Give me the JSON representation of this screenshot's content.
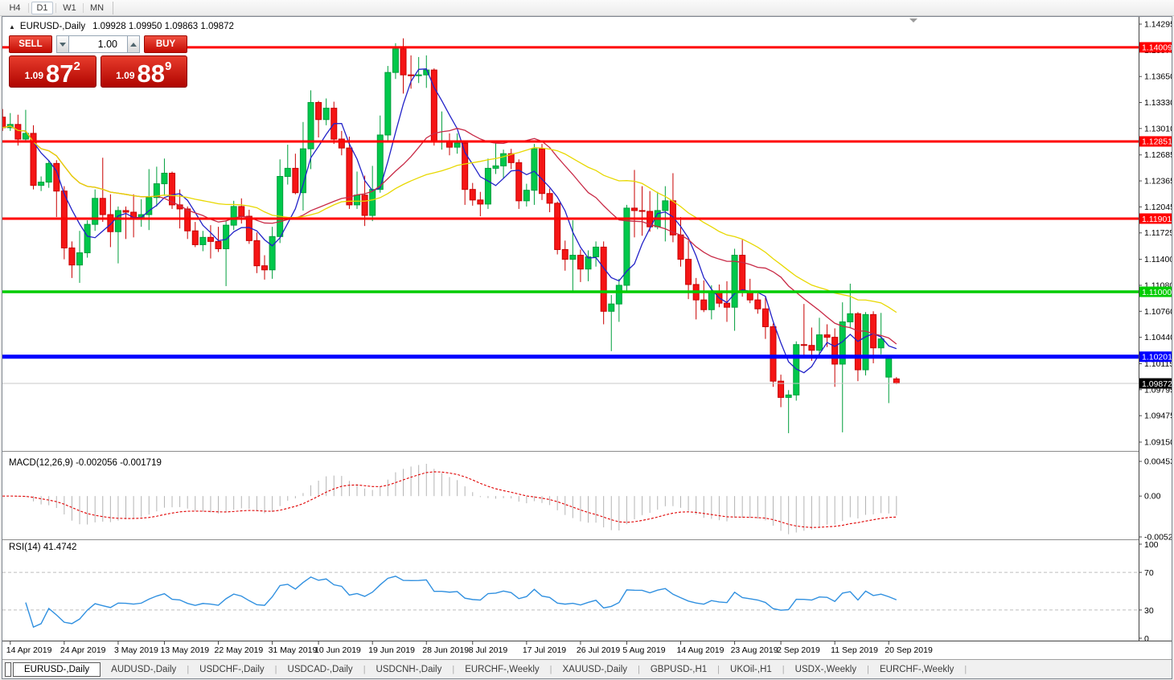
{
  "toolbar": {
    "timeframes": [
      "H4",
      "D1",
      "W1",
      "MN"
    ],
    "active_timeframe": "D1"
  },
  "chart_header": {
    "collapse_icon": "▲",
    "symbol": "EURUSD-,Daily",
    "ohlc": "1.09928 1.09950 1.09863 1.09872"
  },
  "trade_panel": {
    "sell_label": "SELL",
    "buy_label": "BUY",
    "volume": "1.00",
    "sell_price": {
      "prefix": "1.09",
      "big": "87",
      "sup": "2"
    },
    "buy_price": {
      "prefix": "1.09",
      "big": "88",
      "sup": "9"
    },
    "accent_red": "#c40b02"
  },
  "indicators": {
    "macd_label": "MACD(12,26,9) -0.002056 -0.001719",
    "rsi_label": "RSI(14) 41.4742"
  },
  "chart_data": {
    "type": "candlestick",
    "symbol": "EURUSD-",
    "timeframe": "Daily",
    "ylim": [
      1.0904,
      1.1438
    ],
    "grid": false,
    "candle_colors": {
      "up": "#00C84B",
      "up_stroke": "#009E3C",
      "down": "#F51515",
      "down_stroke": "#C80000"
    },
    "price_ticks": [
      "1.14295",
      "1.13975",
      "1.13650",
      "1.13330",
      "1.13010",
      "1.12685",
      "1.12365",
      "1.12045",
      "1.11725",
      "1.11400",
      "1.11080",
      "1.10760",
      "1.10440",
      "1.10115",
      "1.09795",
      "1.09475",
      "1.09150"
    ],
    "x_labels": [
      {
        "i": 1,
        "label": "14 Apr 2019"
      },
      {
        "i": 8,
        "label": "24 Apr 2019"
      },
      {
        "i": 15,
        "label": "3 May 2019"
      },
      {
        "i": 21,
        "label": "13 May 2019"
      },
      {
        "i": 28,
        "label": "22 May 2019"
      },
      {
        "i": 35,
        "label": "31 May 2019"
      },
      {
        "i": 41,
        "label": "10 Jun 2019"
      },
      {
        "i": 48,
        "label": "19 Jun 2019"
      },
      {
        "i": 55,
        "label": "28 Jun 2019"
      },
      {
        "i": 61,
        "label": "8 Jul 2019"
      },
      {
        "i": 68,
        "label": "17 Jul 2019"
      },
      {
        "i": 75,
        "label": "26 Jul 2019"
      },
      {
        "i": 81,
        "label": "5 Aug 2019"
      },
      {
        "i": 88,
        "label": "14 Aug 2019"
      },
      {
        "i": 95,
        "label": "23 Aug 2019"
      },
      {
        "i": 101,
        "label": "2 Sep 2019"
      },
      {
        "i": 108,
        "label": "11 Sep 2019"
      },
      {
        "i": 115,
        "label": "20 Sep 2019"
      }
    ],
    "candles": [
      [
        1.1315,
        1.1325,
        1.1298,
        1.1302
      ],
      [
        1.1302,
        1.132,
        1.1298,
        1.1306
      ],
      [
        1.1306,
        1.1318,
        1.128,
        1.1288
      ],
      [
        1.1288,
        1.1324,
        1.1286,
        1.1295
      ],
      [
        1.1295,
        1.1305,
        1.1226,
        1.1231
      ],
      [
        1.1231,
        1.1242,
        1.1224,
        1.1235
      ],
      [
        1.1235,
        1.1262,
        1.1228,
        1.1258
      ],
      [
        1.1258,
        1.1262,
        1.1192,
        1.1224
      ],
      [
        1.1224,
        1.123,
        1.114,
        1.1154
      ],
      [
        1.1154,
        1.1162,
        1.1117,
        1.1133
      ],
      [
        1.1133,
        1.1175,
        1.1111,
        1.1148
      ],
      [
        1.1148,
        1.1188,
        1.1142,
        1.1183
      ],
      [
        1.1183,
        1.1226,
        1.1175,
        1.1215
      ],
      [
        1.1215,
        1.1265,
        1.1186,
        1.1195
      ],
      [
        1.1195,
        1.122,
        1.1155,
        1.1174
      ],
      [
        1.1174,
        1.1205,
        1.1135,
        1.12
      ],
      [
        1.12,
        1.1205,
        1.1165,
        1.1198
      ],
      [
        1.1198,
        1.122,
        1.1167,
        1.119
      ],
      [
        1.119,
        1.1214,
        1.118,
        1.1195
      ],
      [
        1.1195,
        1.1251,
        1.1176,
        1.1216
      ],
      [
        1.1216,
        1.1254,
        1.1205,
        1.1233
      ],
      [
        1.1233,
        1.1264,
        1.1218,
        1.1246
      ],
      [
        1.1246,
        1.1248,
        1.1202,
        1.1207
      ],
      [
        1.1207,
        1.1226,
        1.1178,
        1.1202
      ],
      [
        1.1202,
        1.1205,
        1.1165,
        1.1175
      ],
      [
        1.1175,
        1.1186,
        1.1155,
        1.1158
      ],
      [
        1.1158,
        1.1175,
        1.115,
        1.1167
      ],
      [
        1.1167,
        1.1182,
        1.1141,
        1.1162
      ],
      [
        1.1162,
        1.118,
        1.1149,
        1.1153
      ],
      [
        1.1153,
        1.1188,
        1.1107,
        1.1182
      ],
      [
        1.1182,
        1.1212,
        1.1176,
        1.1205
      ],
      [
        1.1205,
        1.1215,
        1.1184,
        1.1193
      ],
      [
        1.1193,
        1.1201,
        1.1159,
        1.1163
      ],
      [
        1.1163,
        1.1173,
        1.1123,
        1.1132
      ],
      [
        1.1132,
        1.1145,
        1.1115,
        1.1127
      ],
      [
        1.1127,
        1.118,
        1.1116,
        1.1168
      ],
      [
        1.1168,
        1.1263,
        1.116,
        1.1242
      ],
      [
        1.1242,
        1.1281,
        1.1232,
        1.1252
      ],
      [
        1.1252,
        1.127,
        1.122,
        1.1222
      ],
      [
        1.1222,
        1.1309,
        1.12,
        1.1276
      ],
      [
        1.1276,
        1.1348,
        1.1251,
        1.1333
      ],
      [
        1.1333,
        1.1335,
        1.129,
        1.1312
      ],
      [
        1.1312,
        1.1338,
        1.1305,
        1.1326
      ],
      [
        1.1326,
        1.1334,
        1.1282,
        1.1288
      ],
      [
        1.1288,
        1.1298,
        1.1268,
        1.1277
      ],
      [
        1.1277,
        1.1291,
        1.1202,
        1.1207
      ],
      [
        1.1207,
        1.1248,
        1.1202,
        1.1219
      ],
      [
        1.1219,
        1.1243,
        1.1181,
        1.1194
      ],
      [
        1.1194,
        1.1255,
        1.1187,
        1.1226
      ],
      [
        1.1226,
        1.1317,
        1.1222,
        1.1293
      ],
      [
        1.1293,
        1.1378,
        1.1285,
        1.137
      ],
      [
        1.137,
        1.1406,
        1.1362,
        1.1399
      ],
      [
        1.1399,
        1.1412,
        1.1344,
        1.1367
      ],
      [
        1.1367,
        1.1391,
        1.135,
        1.1366
      ],
      [
        1.1366,
        1.1389,
        1.1357,
        1.1367
      ],
      [
        1.1367,
        1.1391,
        1.1351,
        1.1373
      ],
      [
        1.1373,
        1.1375,
        1.128,
        1.1285
      ],
      [
        1.1285,
        1.1322,
        1.1275,
        1.1285
      ],
      [
        1.1285,
        1.1295,
        1.1268,
        1.1278
      ],
      [
        1.1278,
        1.1295,
        1.127,
        1.1283
      ],
      [
        1.1283,
        1.1286,
        1.1207,
        1.1226
      ],
      [
        1.1226,
        1.1234,
        1.1206,
        1.1213
      ],
      [
        1.1213,
        1.1223,
        1.1193,
        1.1208
      ],
      [
        1.1208,
        1.1264,
        1.1202,
        1.1252
      ],
      [
        1.1252,
        1.1286,
        1.1245,
        1.1255
      ],
      [
        1.1255,
        1.1275,
        1.1239,
        1.127
      ],
      [
        1.127,
        1.1276,
        1.1251,
        1.1259
      ],
      [
        1.1259,
        1.1263,
        1.1202,
        1.1212
      ],
      [
        1.1212,
        1.1233,
        1.1205,
        1.1225
      ],
      [
        1.1225,
        1.1282,
        1.1207,
        1.1276
      ],
      [
        1.1276,
        1.1282,
        1.1213,
        1.1221
      ],
      [
        1.1221,
        1.1227,
        1.1198,
        1.1209
      ],
      [
        1.1209,
        1.1211,
        1.1146,
        1.1152
      ],
      [
        1.1152,
        1.1163,
        1.1126,
        1.114
      ],
      [
        1.114,
        1.1188,
        1.1101,
        1.1145
      ],
      [
        1.1145,
        1.1152,
        1.1112,
        1.1128
      ],
      [
        1.1128,
        1.1151,
        1.1113,
        1.1143
      ],
      [
        1.1143,
        1.1162,
        1.1131,
        1.1155
      ],
      [
        1.1155,
        1.1162,
        1.106,
        1.1076
      ],
      [
        1.1076,
        1.1096,
        1.1027,
        1.1085
      ],
      [
        1.1085,
        1.1116,
        1.1063,
        1.1108
      ],
      [
        1.1108,
        1.1207,
        1.1101,
        1.1203
      ],
      [
        1.1203,
        1.125,
        1.1167,
        1.12
      ],
      [
        1.12,
        1.123,
        1.1169,
        1.1199
      ],
      [
        1.1199,
        1.1224,
        1.1174,
        1.118
      ],
      [
        1.118,
        1.1223,
        1.1177,
        1.12
      ],
      [
        1.12,
        1.123,
        1.1162,
        1.1212
      ],
      [
        1.1212,
        1.1246,
        1.1161,
        1.117
      ],
      [
        1.117,
        1.1192,
        1.1131,
        1.114
      ],
      [
        1.114,
        1.1163,
        1.1091,
        1.1109
      ],
      [
        1.1109,
        1.1117,
        1.1066,
        1.109
      ],
      [
        1.109,
        1.1114,
        1.1075,
        1.1078
      ],
      [
        1.1078,
        1.1108,
        1.1066,
        1.1099
      ],
      [
        1.1099,
        1.1109,
        1.1081,
        1.1086
      ],
      [
        1.1086,
        1.1113,
        1.1063,
        1.1081
      ],
      [
        1.1081,
        1.1153,
        1.1052,
        1.1145
      ],
      [
        1.1145,
        1.1164,
        1.1094,
        1.1101
      ],
      [
        1.1101,
        1.1116,
        1.1086,
        1.109
      ],
      [
        1.109,
        1.1098,
        1.1073,
        1.1079
      ],
      [
        1.1079,
        1.1094,
        1.1042,
        1.1057
      ],
      [
        1.1057,
        1.1061,
        1.0983,
        1.099
      ],
      [
        1.099,
        1.0998,
        1.0958,
        1.097
      ],
      [
        1.097,
        1.0979,
        1.0926,
        1.0973
      ],
      [
        1.0973,
        1.1039,
        1.0966,
        1.1035
      ],
      [
        1.1035,
        1.1085,
        1.1022,
        1.1034
      ],
      [
        1.1034,
        1.1056,
        1.1015,
        1.1028
      ],
      [
        1.1028,
        1.1068,
        1.1022,
        1.1047
      ],
      [
        1.1047,
        1.106,
        1.1032,
        1.1044
      ],
      [
        1.1044,
        1.1055,
        1.0983,
        1.1011
      ],
      [
        1.1011,
        1.1087,
        1.0927,
        1.1063
      ],
      [
        1.1063,
        1.111,
        1.1055,
        1.1073
      ],
      [
        1.1073,
        1.1075,
        1.099,
        1.1004
      ],
      [
        1.1004,
        1.1075,
        1.0997,
        1.1072
      ],
      [
        1.1072,
        1.1076,
        1.1012,
        1.1031
      ],
      [
        1.1031,
        1.1074,
        1.1023,
        1.1042
      ],
      [
        1.0995,
        1.1022,
        1.0963,
        1.1018
      ],
      [
        1.09928,
        1.0995,
        1.09863,
        1.09872
      ]
    ],
    "ma_lines": [
      {
        "period": 5,
        "color": "#2222C8"
      },
      {
        "period": 21,
        "color": "#C82A46"
      },
      {
        "period": 34,
        "color": "#E8D800"
      }
    ],
    "levels": [
      {
        "price": 1.14009,
        "label": "1.14009",
        "color": "#FF0000",
        "width": 3
      },
      {
        "price": 1.12851,
        "label": "1.12851",
        "color": "#FF0000",
        "width": 3
      },
      {
        "price": 1.11901,
        "label": "1.11901",
        "color": "#FF0000",
        "width": 3
      },
      {
        "price": 1.11,
        "label": "1.11000",
        "color": "#00CC00",
        "width": 3.5
      },
      {
        "price": 1.10201,
        "label": "1.10201",
        "color": "#0000FF",
        "width": 5
      },
      {
        "price": 1.09872,
        "label": "1.09872",
        "color": "#C8C8C8",
        "width": 1,
        "badge_color": "#000000"
      }
    ],
    "macd": {
      "params": "12,26,9",
      "values": [
        "-0.002056",
        "-0.001719"
      ],
      "hist_color": "#B4B4B4",
      "signal_color": "#E00000",
      "axis_labels": [
        "0.004536",
        "0.00",
        "-0.005204"
      ],
      "ylim": [
        -0.005204,
        0.004536
      ]
    },
    "rsi": {
      "period": 14,
      "value": "41.4742",
      "color": "#3090E0",
      "level_lines": [
        70,
        30
      ],
      "axis_labels": [
        "100",
        "70",
        "30",
        "0"
      ]
    }
  },
  "tabs": {
    "items": [
      {
        "label": "EURUSD-,Daily",
        "active": true
      },
      {
        "label": "AUDUSD-,Daily",
        "active": false
      },
      {
        "label": "USDCHF-,Daily",
        "active": false
      },
      {
        "label": "USDCAD-,Daily",
        "active": false
      },
      {
        "label": "USDCNH-,Daily",
        "active": false
      },
      {
        "label": "EURCHF-,Weekly",
        "active": false
      },
      {
        "label": "XAUUSD-,Daily",
        "active": false
      },
      {
        "label": "GBPUSD-,H1",
        "active": false
      },
      {
        "label": "UKOil-,H1",
        "active": false
      },
      {
        "label": "USDX-,Weekly",
        "active": false
      },
      {
        "label": "EURCHF-,Weekly",
        "active": false
      }
    ]
  }
}
